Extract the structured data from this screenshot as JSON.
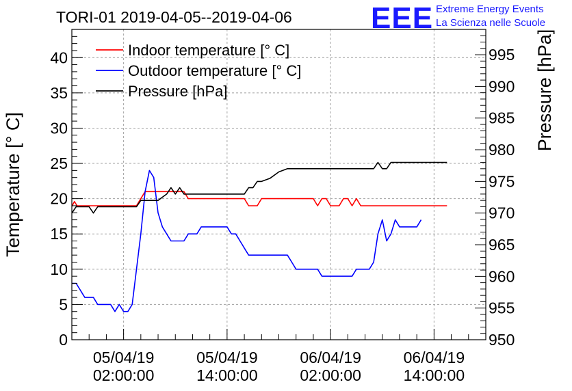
{
  "chart_data": {
    "type": "line",
    "title": "TORI-01 2019-04-05--2019-04-06",
    "ylabel": "Temperature [° C]",
    "ylabel_right": "Pressure [hPa]",
    "ylim": [
      0,
      44
    ],
    "ylim_right": [
      950,
      999
    ],
    "xlim": [
      -6,
      42
    ],
    "grid": true,
    "legend_position": "top-left",
    "yticks": [
      "0",
      "5",
      "10",
      "15",
      "20",
      "25",
      "30",
      "35",
      "40"
    ],
    "yticks_right": [
      "950",
      "955",
      "960",
      "965",
      "970",
      "975",
      "980",
      "985",
      "990",
      "995"
    ],
    "xticks": [
      {
        "x": 0,
        "line1": "05/04/19",
        "line2": "02:00:00"
      },
      {
        "x": 12,
        "line1": "05/04/19",
        "line2": "14:00:00"
      },
      {
        "x": 24,
        "line1": "06/04/19",
        "line2": "02:00:00"
      },
      {
        "x": 36,
        "line1": "06/04/19",
        "line2": "14:00:00"
      }
    ],
    "series": [
      {
        "name": "Indoor temperature [° C]",
        "color": "#ff0000",
        "axis": "left",
        "points": [
          [
            -6,
            18.9
          ],
          [
            -5.7,
            19.6
          ],
          [
            -5.4,
            19
          ],
          [
            -5,
            19
          ],
          [
            -4,
            19
          ],
          [
            -3,
            19
          ],
          [
            -2,
            19
          ],
          [
            -1,
            19
          ],
          [
            0,
            19
          ],
          [
            1,
            19
          ],
          [
            1.5,
            19
          ],
          [
            2,
            20
          ],
          [
            2.5,
            21
          ],
          [
            3,
            21
          ],
          [
            4,
            21
          ],
          [
            5,
            21
          ],
          [
            6,
            21
          ],
          [
            7,
            21
          ],
          [
            7.5,
            20
          ],
          [
            8,
            20
          ],
          [
            9,
            20
          ],
          [
            10,
            20
          ],
          [
            11,
            20
          ],
          [
            12,
            20
          ],
          [
            13,
            20
          ],
          [
            14,
            20
          ],
          [
            14.5,
            19
          ],
          [
            15.5,
            19
          ],
          [
            16,
            20
          ],
          [
            17,
            20
          ],
          [
            18,
            20
          ],
          [
            19,
            20
          ],
          [
            20,
            20
          ],
          [
            21,
            20
          ],
          [
            22,
            20
          ],
          [
            22.5,
            19
          ],
          [
            23,
            20
          ],
          [
            23.5,
            20
          ],
          [
            24,
            19
          ],
          [
            25,
            19
          ],
          [
            25.5,
            20
          ],
          [
            26,
            20
          ],
          [
            26.5,
            19
          ],
          [
            27,
            20
          ],
          [
            27.5,
            19
          ],
          [
            28,
            19
          ],
          [
            29,
            19
          ],
          [
            30,
            19
          ],
          [
            31,
            19
          ],
          [
            32,
            19
          ],
          [
            33,
            19
          ],
          [
            34,
            19
          ],
          [
            35,
            19
          ],
          [
            36,
            19
          ],
          [
            37,
            19
          ],
          [
            37.5,
            19
          ]
        ]
      },
      {
        "name": "Outdoor temperature [° C]",
        "color": "#0000ff",
        "axis": "left",
        "points": [
          [
            -6,
            8
          ],
          [
            -5.5,
            8
          ],
          [
            -5,
            7
          ],
          [
            -4.5,
            6
          ],
          [
            -4,
            6
          ],
          [
            -3.5,
            6
          ],
          [
            -3,
            5
          ],
          [
            -2,
            5
          ],
          [
            -1.5,
            5
          ],
          [
            -1,
            4
          ],
          [
            -0.5,
            5
          ],
          [
            0,
            4
          ],
          [
            0.5,
            4
          ],
          [
            1,
            5
          ],
          [
            1.5,
            10
          ],
          [
            2,
            15
          ],
          [
            2.5,
            21
          ],
          [
            3,
            24
          ],
          [
            3.5,
            23
          ],
          [
            4,
            18
          ],
          [
            4.5,
            16
          ],
          [
            5,
            15
          ],
          [
            5.5,
            14
          ],
          [
            6,
            14
          ],
          [
            7,
            14
          ],
          [
            7.5,
            15
          ],
          [
            8,
            15
          ],
          [
            8.5,
            15
          ],
          [
            9,
            16
          ],
          [
            10,
            16
          ],
          [
            11,
            16
          ],
          [
            12,
            16
          ],
          [
            12.5,
            15
          ],
          [
            13,
            15
          ],
          [
            13.5,
            14
          ],
          [
            14,
            13
          ],
          [
            14.5,
            12
          ],
          [
            15,
            12
          ],
          [
            16,
            12
          ],
          [
            17,
            12
          ],
          [
            18,
            12
          ],
          [
            19,
            12
          ],
          [
            19.5,
            11
          ],
          [
            20,
            10
          ],
          [
            21,
            10
          ],
          [
            22,
            10
          ],
          [
            22.5,
            10
          ],
          [
            23,
            9
          ],
          [
            24,
            9
          ],
          [
            25,
            9
          ],
          [
            26,
            9
          ],
          [
            26.5,
            9
          ],
          [
            27,
            10
          ],
          [
            28,
            10
          ],
          [
            28.5,
            10
          ],
          [
            29,
            11
          ],
          [
            29.5,
            15
          ],
          [
            30,
            17
          ],
          [
            30.5,
            14
          ],
          [
            31,
            15
          ],
          [
            31.5,
            17
          ],
          [
            32,
            16
          ],
          [
            33,
            16
          ],
          [
            34,
            16
          ],
          [
            34.5,
            17
          ]
        ]
      },
      {
        "name": "Pressure [hPa]",
        "color": "#000000",
        "axis": "right",
        "points": [
          [
            -6,
            970
          ],
          [
            -5.5,
            971
          ],
          [
            -5,
            971
          ],
          [
            -4,
            971
          ],
          [
            -3.5,
            970
          ],
          [
            -3,
            971
          ],
          [
            -2,
            971
          ],
          [
            -1,
            971
          ],
          [
            0,
            971
          ],
          [
            1,
            971
          ],
          [
            1.5,
            971
          ],
          [
            2,
            972
          ],
          [
            3,
            972
          ],
          [
            4,
            972
          ],
          [
            5,
            973
          ],
          [
            5.5,
            974
          ],
          [
            6,
            973
          ],
          [
            6.5,
            974
          ],
          [
            7,
            973
          ],
          [
            8,
            973
          ],
          [
            9,
            973
          ],
          [
            10,
            973
          ],
          [
            11,
            973
          ],
          [
            12,
            973
          ],
          [
            13,
            973
          ],
          [
            14,
            973
          ],
          [
            14.5,
            974
          ],
          [
            15,
            974
          ],
          [
            15.5,
            975
          ],
          [
            16,
            975
          ],
          [
            17,
            975.5
          ],
          [
            18,
            976.5
          ],
          [
            19,
            977
          ],
          [
            20,
            977
          ],
          [
            21,
            977
          ],
          [
            22,
            977
          ],
          [
            23,
            977
          ],
          [
            24,
            977
          ],
          [
            25,
            977
          ],
          [
            26,
            977
          ],
          [
            27,
            977
          ],
          [
            28,
            977
          ],
          [
            29,
            977
          ],
          [
            29.5,
            978
          ],
          [
            30,
            977
          ],
          [
            30.5,
            977
          ],
          [
            31,
            978
          ],
          [
            32,
            978
          ],
          [
            33,
            978
          ],
          [
            34,
            978
          ],
          [
            35,
            978
          ],
          [
            36,
            978
          ],
          [
            37,
            978
          ],
          [
            37.5,
            978
          ]
        ]
      }
    ]
  },
  "brand": {
    "logo": "EEE",
    "line1": "Extreme Energy Events",
    "line2": "La Scienza nelle Scuole"
  }
}
